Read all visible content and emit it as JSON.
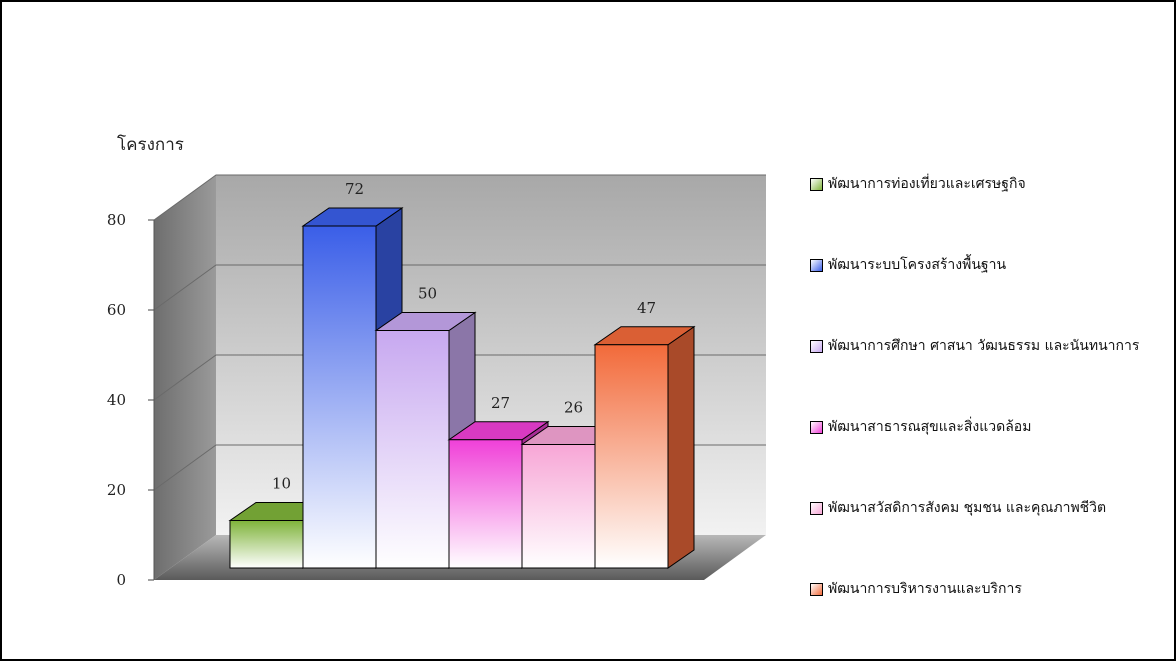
{
  "chart_data": {
    "type": "bar",
    "ylabel": "โครงการ",
    "ylim": [
      0,
      80
    ],
    "yticks": [
      0,
      20,
      40,
      60,
      80
    ],
    "grid": true,
    "legend_position": "right",
    "categories": [
      "พัฒนาการท่องเที่ยวและเศรษฐกิจ",
      "พัฒนาระบบโครงสร้างพื้นฐาน",
      "พัฒนาการศึกษา ศาสนา วัฒนธรรม และนันทนาการ",
      "พัฒนาสาธารณสุขและสิ่งแวดล้อม",
      "พัฒนาสวัสดิการสังคม ชุมชน และคุณภาพชีวิต",
      "พัฒนาการบริหารงานและบริการ"
    ],
    "values": [
      10,
      72,
      50,
      27,
      26,
      47
    ],
    "colors": [
      "#7fb33a",
      "#3a5ee8",
      "#c7a8f0",
      "#f040d8",
      "#f7a6d6",
      "#f26a3a"
    ]
  }
}
